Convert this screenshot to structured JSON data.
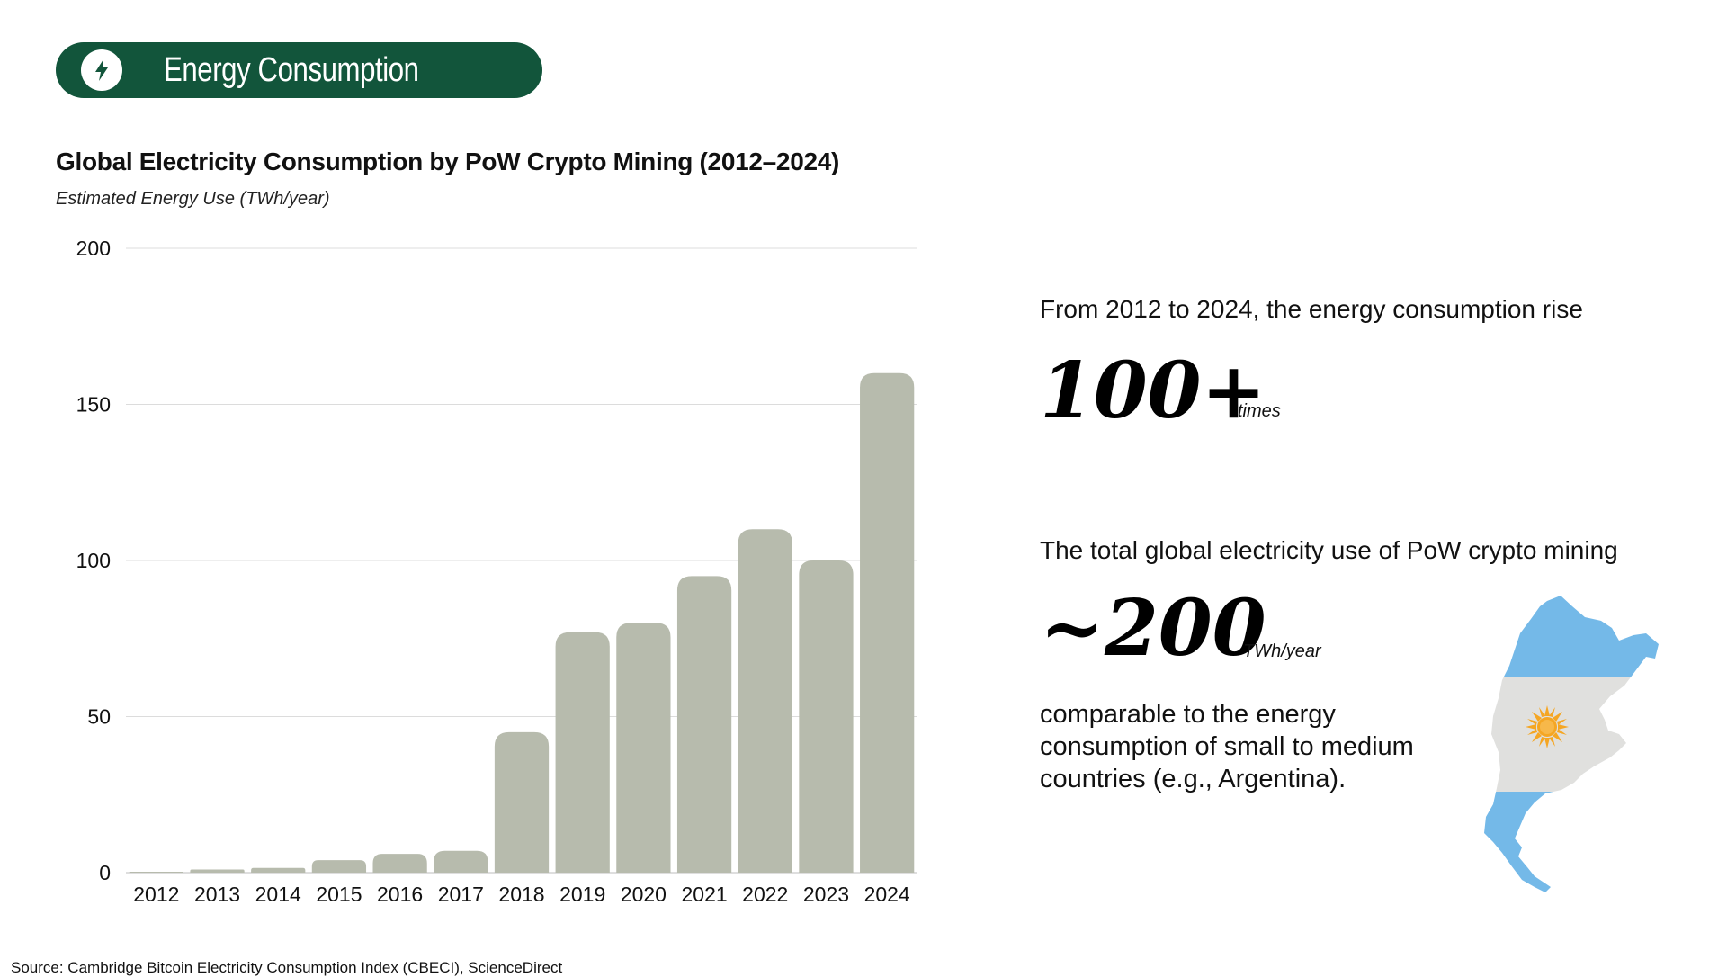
{
  "header": {
    "title": "Energy Consumption",
    "icon": "lightning-bolt-icon",
    "background_color": "#12553b"
  },
  "chart_data": {
    "type": "bar",
    "title": "Global Electricity Consumption by PoW Crypto Mining (2012–2024)",
    "subtitle": "Estimated Energy Use (TWh/year)",
    "xlabel": "",
    "ylabel": "",
    "categories": [
      "2012",
      "2013",
      "2014",
      "2015",
      "2016",
      "2017",
      "2018",
      "2019",
      "2020",
      "2021",
      "2022",
      "2023",
      "2024"
    ],
    "values": [
      0.1,
      1,
      1.5,
      4,
      6,
      7,
      45,
      77,
      80,
      95,
      110,
      100,
      160
    ],
    "ylim": [
      0,
      200
    ],
    "yticks": [
      0,
      50,
      100,
      150,
      200
    ],
    "grid": true,
    "bar_color": "#b7bbad",
    "gridline_color": "#dcdcdc"
  },
  "stats": {
    "growth": {
      "intro": "From 2012 to 2024, the energy consumption rise",
      "value": "100+",
      "unit": "times"
    },
    "total": {
      "intro": "The total global electricity use of PoW crypto mining",
      "value": "~200",
      "unit": "TWh/year",
      "comparison": "comparable to the energy consumption of small to medium countries (e.g., Argentina)."
    }
  },
  "illustration": {
    "icon": "argentina-flag-map-icon",
    "colors": {
      "sky_blue": "#74b9e8",
      "white": "#e0e0de",
      "sun": "#f5a623"
    }
  },
  "source": "Source: Cambridge Bitcoin Electricity Consumption Index (CBECI), ScienceDirect"
}
